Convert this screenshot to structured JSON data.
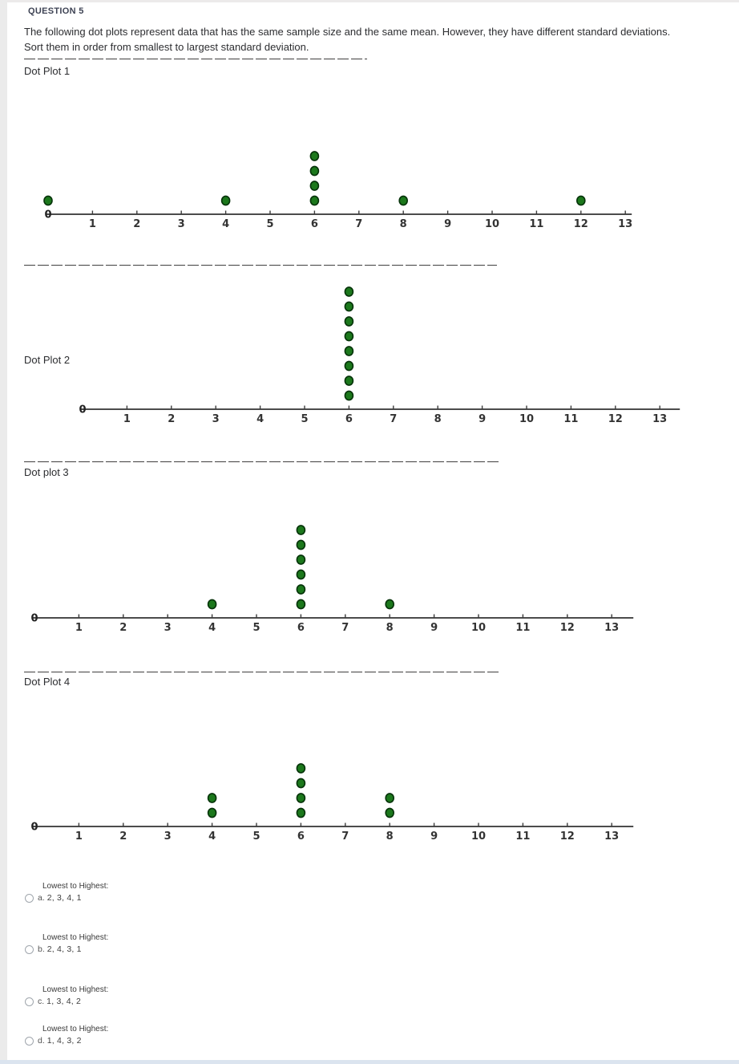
{
  "header": {
    "question_label": "QUESTION 5"
  },
  "question": {
    "line1": "The following dot plots represent data that has the same sample size and the same mean. However, they have different standard deviations.",
    "line2": "Sort them in order from smallest to largest standard deviation."
  },
  "colors": {
    "dot_fill": "#1c781c",
    "dot_stroke": "#06330a",
    "axis": "#4c4c4c",
    "tick_label": "#333333",
    "separator": "#3f3f3f",
    "bottom_strip": "#dbe4ef"
  },
  "chart_data": [
    {
      "type": "scatter",
      "subtype": "dot-plot",
      "title": "Dot Plot 1",
      "values": [
        0,
        4,
        6,
        6,
        6,
        6,
        8,
        12
      ],
      "points": [
        {
          "x": 0,
          "count": 1
        },
        {
          "x": 4,
          "count": 1
        },
        {
          "x": 6,
          "count": 4
        },
        {
          "x": 8,
          "count": 1
        },
        {
          "x": 12,
          "count": 1
        }
      ],
      "x_ticks": [
        0,
        1,
        2,
        3,
        4,
        5,
        6,
        7,
        8,
        9,
        10,
        11,
        12,
        13
      ],
      "xlim": [
        0,
        13
      ],
      "xlabel": "",
      "ylabel": "",
      "sample_size": 8,
      "mean": 6
    },
    {
      "type": "scatter",
      "subtype": "dot-plot",
      "title": "Dot Plot 2",
      "values": [
        6,
        6,
        6,
        6,
        6,
        6,
        6,
        6
      ],
      "points": [
        {
          "x": 6,
          "count": 8
        }
      ],
      "x_ticks": [
        0,
        1,
        2,
        3,
        4,
        5,
        6,
        7,
        8,
        9,
        10,
        11,
        12,
        13
      ],
      "xlim": [
        0,
        13
      ],
      "xlabel": "",
      "ylabel": "",
      "sample_size": 8,
      "mean": 6
    },
    {
      "type": "scatter",
      "subtype": "dot-plot",
      "title": "Dot plot 3",
      "values": [
        4,
        6,
        6,
        6,
        6,
        6,
        6,
        8
      ],
      "points": [
        {
          "x": 4,
          "count": 1
        },
        {
          "x": 6,
          "count": 6
        },
        {
          "x": 8,
          "count": 1
        }
      ],
      "x_ticks": [
        0,
        1,
        2,
        3,
        4,
        5,
        6,
        7,
        8,
        9,
        10,
        11,
        12,
        13
      ],
      "xlim": [
        0,
        13
      ],
      "xlabel": "",
      "ylabel": "",
      "sample_size": 8,
      "mean": 6
    },
    {
      "type": "scatter",
      "subtype": "dot-plot",
      "title": "Dot Plot 4",
      "values": [
        4,
        4,
        6,
        6,
        6,
        6,
        8,
        8
      ],
      "points": [
        {
          "x": 4,
          "count": 2
        },
        {
          "x": 6,
          "count": 4
        },
        {
          "x": 8,
          "count": 2
        }
      ],
      "x_ticks": [
        0,
        1,
        2,
        3,
        4,
        5,
        6,
        7,
        8,
        9,
        10,
        11,
        12,
        13
      ],
      "xlim": [
        0,
        13
      ],
      "xlabel": "",
      "ylabel": "",
      "sample_size": 8,
      "mean": 6
    }
  ],
  "options": [
    {
      "header": "Lowest to Highest:",
      "prefix": "a.",
      "value": "2, 3, 4, 1"
    },
    {
      "header": "Lowest to Highest:",
      "prefix": "b.",
      "value": "2, 4, 3, 1"
    },
    {
      "header": "Lowest to Highest:",
      "prefix": "c.",
      "value": "1, 3, 4, 2"
    },
    {
      "header": "Lowest to Highest:",
      "prefix": "d.",
      "value": "1, 4, 3, 2"
    }
  ]
}
